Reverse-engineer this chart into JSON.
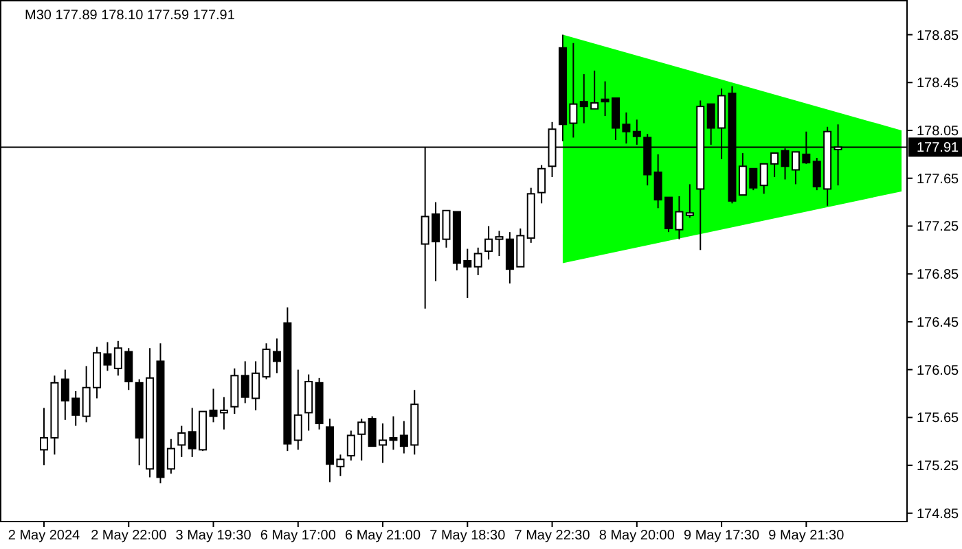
{
  "chart_data": {
    "type": "candlestick",
    "title": "M30  177.89 178.10 177.59 177.91",
    "categories": [
      "2 May 2024",
      null,
      null,
      null,
      null,
      null,
      null,
      null,
      "2 May 22:00",
      null,
      null,
      null,
      null,
      null,
      null,
      null,
      "3 May 19:30",
      null,
      null,
      null,
      null,
      null,
      null,
      null,
      "6 May 17:00",
      null,
      null,
      null,
      null,
      null,
      null,
      null,
      "6 May 21:00",
      null,
      null,
      null,
      null,
      null,
      null,
      null,
      "7 May 18:30",
      null,
      null,
      null,
      null,
      null,
      null,
      null,
      "7 May 22:30",
      null,
      null,
      null,
      null,
      null,
      null,
      null,
      "8 May 20:00",
      null,
      null,
      null,
      null,
      null,
      null,
      null,
      "9 May 17:30",
      null,
      null,
      null,
      null,
      null,
      null,
      null,
      "9 May 21:30",
      null,
      null,
      null,
      null,
      null,
      null,
      null,
      null,
      null
    ],
    "ohlc": [
      [
        175.38,
        175.73,
        175.25,
        175.48
      ],
      [
        175.48,
        176.0,
        175.34,
        175.94
      ],
      [
        175.97,
        176.05,
        175.63,
        175.79
      ],
      [
        175.81,
        175.87,
        175.58,
        175.67
      ],
      [
        175.66,
        176.08,
        175.61,
        175.9
      ],
      [
        175.9,
        176.24,
        175.81,
        176.19
      ],
      [
        176.18,
        176.28,
        176.04,
        176.09
      ],
      [
        176.06,
        176.29,
        176.0,
        176.23
      ],
      [
        176.2,
        176.23,
        175.88,
        175.95
      ],
      [
        175.94,
        175.97,
        175.25,
        175.48
      ],
      [
        175.22,
        176.23,
        175.15,
        175.98
      ],
      [
        176.12,
        176.27,
        175.1,
        175.15
      ],
      [
        175.22,
        175.47,
        175.18,
        175.39
      ],
      [
        175.42,
        175.58,
        175.32,
        175.52
      ],
      [
        175.53,
        175.73,
        175.32,
        175.39
      ],
      [
        175.38,
        175.7,
        175.37,
        175.7
      ],
      [
        175.71,
        175.89,
        175.61,
        175.66
      ],
      [
        175.69,
        175.82,
        175.55,
        175.71
      ],
      [
        175.74,
        176.06,
        175.68,
        176.0
      ],
      [
        176.0,
        176.12,
        175.77,
        175.82
      ],
      [
        175.81,
        176.12,
        175.71,
        176.02
      ],
      [
        175.99,
        176.27,
        175.97,
        176.22
      ],
      [
        176.2,
        176.31,
        176.02,
        176.12
      ],
      [
        176.44,
        176.57,
        175.37,
        175.43
      ],
      [
        175.46,
        176.05,
        175.38,
        175.67
      ],
      [
        175.69,
        176.01,
        175.54,
        175.95
      ],
      [
        175.94,
        175.98,
        175.55,
        175.6
      ],
      [
        175.57,
        175.64,
        175.11,
        175.26
      ],
      [
        175.24,
        175.34,
        175.16,
        175.3
      ],
      [
        175.33,
        175.54,
        175.29,
        175.5
      ],
      [
        175.51,
        175.64,
        175.29,
        175.61
      ],
      [
        175.64,
        175.66,
        175.41,
        175.41
      ],
      [
        175.42,
        175.6,
        175.27,
        175.46
      ],
      [
        175.48,
        175.66,
        175.38,
        175.46
      ],
      [
        175.5,
        175.62,
        175.35,
        175.41
      ],
      [
        175.42,
        175.88,
        175.34,
        175.76
      ],
      [
        177.1,
        177.91,
        176.56,
        177.33
      ],
      [
        177.35,
        177.45,
        176.79,
        177.12
      ],
      [
        177.14,
        177.38,
        177.07,
        177.38
      ],
      [
        177.37,
        177.37,
        176.88,
        176.94
      ],
      [
        176.96,
        177.06,
        176.65,
        176.91
      ],
      [
        176.91,
        177.07,
        176.84,
        177.02
      ],
      [
        177.04,
        177.25,
        176.97,
        177.14
      ],
      [
        177.14,
        177.21,
        177.0,
        177.16
      ],
      [
        177.14,
        177.2,
        176.77,
        176.89
      ],
      [
        176.91,
        177.23,
        176.91,
        177.17
      ],
      [
        177.15,
        177.57,
        177.11,
        177.52
      ],
      [
        177.53,
        177.76,
        177.44,
        177.73
      ],
      [
        177.75,
        178.12,
        177.66,
        178.06
      ],
      [
        178.74,
        178.85,
        177.96,
        178.1
      ],
      [
        178.11,
        178.78,
        177.99,
        178.27
      ],
      [
        178.29,
        178.52,
        178.11,
        178.25
      ],
      [
        178.23,
        178.55,
        178.23,
        178.28
      ],
      [
        178.31,
        178.46,
        178.17,
        178.29
      ],
      [
        178.32,
        178.32,
        177.97,
        178.07
      ],
      [
        178.1,
        178.2,
        177.94,
        178.04
      ],
      [
        178.04,
        178.14,
        177.93,
        178.0
      ],
      [
        177.99,
        178.02,
        177.59,
        177.68
      ],
      [
        177.7,
        177.85,
        177.4,
        177.47
      ],
      [
        177.49,
        177.49,
        177.2,
        177.23
      ],
      [
        177.22,
        177.5,
        177.14,
        177.37
      ],
      [
        177.34,
        177.6,
        177.32,
        177.36
      ],
      [
        177.56,
        178.3,
        177.05,
        178.25
      ],
      [
        178.27,
        178.27,
        177.93,
        178.07
      ],
      [
        178.07,
        178.4,
        177.81,
        178.34
      ],
      [
        178.36,
        178.42,
        177.44,
        177.46
      ],
      [
        177.51,
        177.86,
        177.51,
        177.75
      ],
      [
        177.73,
        177.73,
        177.55,
        177.57
      ],
      [
        177.59,
        177.77,
        177.52,
        177.77
      ],
      [
        177.77,
        177.86,
        177.66,
        177.86
      ],
      [
        177.88,
        177.9,
        177.64,
        177.75
      ],
      [
        177.72,
        177.87,
        177.6,
        177.87
      ],
      [
        177.85,
        178.04,
        177.77,
        177.78
      ],
      [
        177.79,
        177.82,
        177.55,
        177.58
      ],
      [
        177.56,
        178.08,
        177.42,
        178.04
      ],
      [
        177.89,
        178.1,
        177.59,
        177.91
      ],
      null,
      null,
      null,
      null,
      null,
      null
    ],
    "series": [
      {
        "type": "area",
        "color": "#00ff00",
        "lower": [
          null,
          null,
          null,
          null,
          null,
          null,
          null,
          null,
          null,
          null,
          null,
          null,
          null,
          null,
          null,
          null,
          null,
          null,
          null,
          null,
          null,
          null,
          null,
          null,
          null,
          null,
          null,
          null,
          null,
          null,
          null,
          null,
          null,
          null,
          null,
          null,
          null,
          null,
          null,
          null,
          null,
          null,
          null,
          null,
          null,
          null,
          null,
          null,
          null,
          176.94,
          null,
          null,
          null,
          null,
          null,
          null,
          null,
          null,
          null,
          null,
          null,
          null,
          null,
          null,
          null,
          null,
          null,
          null,
          null,
          null,
          null,
          null,
          null,
          null,
          null,
          null,
          null,
          null,
          null,
          null,
          null,
          177.54
        ],
        "values": [
          null,
          null,
          null,
          null,
          null,
          null,
          null,
          null,
          null,
          null,
          null,
          null,
          null,
          null,
          null,
          null,
          null,
          null,
          null,
          null,
          null,
          null,
          null,
          null,
          null,
          null,
          null,
          null,
          null,
          null,
          null,
          null,
          null,
          null,
          null,
          null,
          null,
          null,
          null,
          null,
          null,
          null,
          null,
          null,
          null,
          null,
          null,
          null,
          null,
          null,
          null,
          null,
          null,
          null,
          null,
          null,
          null,
          null,
          null,
          null,
          null,
          null,
          null,
          null,
          null,
          null,
          null,
          null,
          null,
          null,
          null,
          null,
          null,
          null,
          null,
          null,
          null,
          null,
          null,
          null,
          null,
          null
        ],
        "upper": [
          null,
          null,
          null,
          null,
          null,
          null,
          null,
          null,
          null,
          null,
          null,
          null,
          null,
          null,
          null,
          null,
          null,
          null,
          null,
          null,
          null,
          null,
          null,
          null,
          null,
          null,
          null,
          null,
          null,
          null,
          null,
          null,
          null,
          null,
          null,
          null,
          null,
          null,
          null,
          null,
          null,
          null,
          null,
          null,
          null,
          null,
          null,
          null,
          null,
          178.85,
          null,
          null,
          null,
          null,
          null,
          null,
          null,
          null,
          null,
          null,
          null,
          null,
          null,
          null,
          null,
          null,
          null,
          null,
          null,
          null,
          null,
          null,
          null,
          null,
          null,
          null,
          null,
          null,
          null,
          null,
          null,
          178.05
        ]
      }
    ],
    "ylim": [
      174.78,
      179.14
    ],
    "yticks": [
      174.85,
      175.25,
      175.65,
      176.05,
      176.45,
      176.85,
      177.25,
      177.65,
      178.05,
      178.45,
      178.85
    ],
    "ref_lines": [
      {
        "axis": "y",
        "value": 177.91,
        "label": "177.91"
      }
    ]
  }
}
